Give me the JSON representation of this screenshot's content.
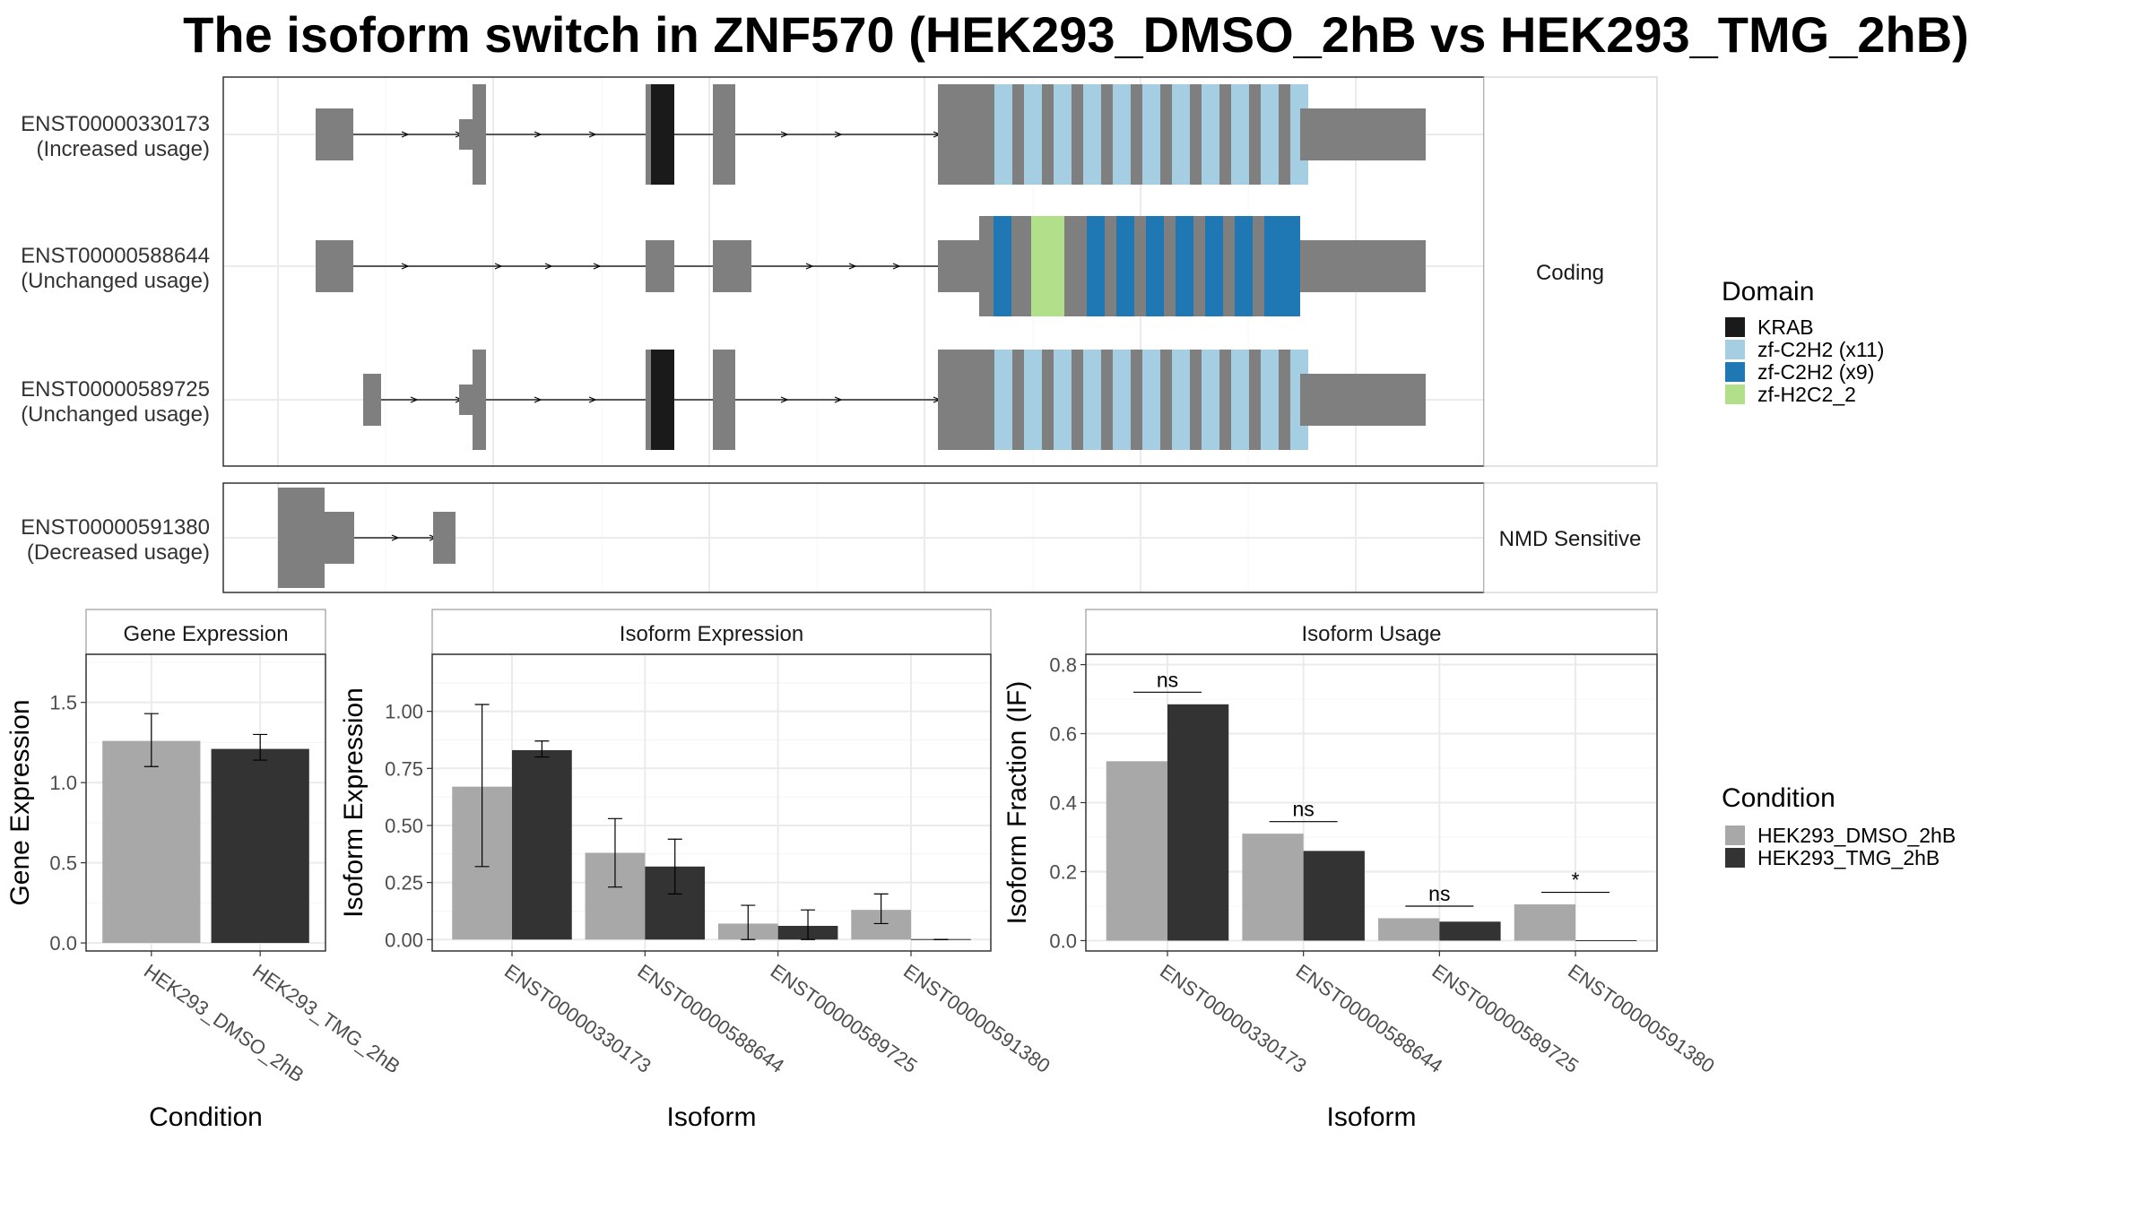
{
  "title": "The isoform switch in ZNF570 (HEK293_DMSO_2hB vs HEK293_TMG_2hB)",
  "colors": {
    "intron_box": "#7f7f7f",
    "dmso": "#a8a8a8",
    "tmg": "#333333",
    "KRAB": "#1a1a1a",
    "zf-C2H2 (x11)": "#a6cee3",
    "zf-C2H2 (x9)": "#1f78b4",
    "zf-H2C2_2": "#b2df8a"
  },
  "transcripts": [
    {
      "id": "ENST00000330173",
      "usage": "(Increased usage)",
      "group": "Coding"
    },
    {
      "id": "ENST00000588644",
      "usage": "(Unchanged usage)",
      "group": "Coding"
    },
    {
      "id": "ENST00000589725",
      "usage": "(Unchanged usage)",
      "group": "Coding"
    },
    {
      "id": "ENST00000591380",
      "usage": "(Decreased usage)",
      "group": "NMD Sensitive"
    }
  ],
  "structure_panels": [
    "Coding",
    "NMD Sensitive"
  ],
  "domain_legend": {
    "title": "Domain",
    "items": [
      {
        "label": "KRAB",
        "color": "#1a1a1a"
      },
      {
        "label": "zf-C2H2 (x11)",
        "color": "#a6cee3"
      },
      {
        "label": "zf-C2H2 (x9)",
        "color": "#1f78b4"
      },
      {
        "label": "zf-H2C2_2",
        "color": "#b2df8a"
      }
    ]
  },
  "condition_legend": {
    "title": "Condition",
    "items": [
      {
        "label": "HEK293_DMSO_2hB",
        "color": "#a8a8a8"
      },
      {
        "label": "HEK293_TMG_2hB",
        "color": "#333333"
      }
    ]
  },
  "chart_data": [
    {
      "type": "bar",
      "title": "Gene Expression",
      "xlabel": "Condition",
      "ylabel": "Gene Expression",
      "ylim": [
        -0.05,
        1.8
      ],
      "yticks": [
        0.0,
        0.5,
        1.0,
        1.5
      ],
      "ytick_labels": [
        "0.0",
        "0.5",
        "1.0",
        "1.5"
      ],
      "categories": [
        "HEK293_DMSO_2hB",
        "HEK293_TMG_2hB"
      ],
      "values": [
        1.26,
        1.21
      ],
      "err_low": [
        1.1,
        1.14
      ],
      "err_high": [
        1.43,
        1.3
      ],
      "colors": [
        "#a8a8a8",
        "#333333"
      ]
    },
    {
      "type": "bar",
      "title": "Isoform Expression",
      "xlabel": "Isoform",
      "ylabel": "Isoform Expression",
      "ylim": [
        -0.05,
        1.25
      ],
      "yticks": [
        0.0,
        0.25,
        0.5,
        0.75,
        1.0
      ],
      "ytick_labels": [
        "0.00",
        "0.25",
        "0.50",
        "0.75",
        "1.00"
      ],
      "categories": [
        "ENST00000330173",
        "ENST00000588644",
        "ENST00000589725",
        "ENST00000591380"
      ],
      "series": [
        {
          "name": "HEK293_DMSO_2hB",
          "values": [
            0.67,
            0.38,
            0.07,
            0.13
          ],
          "err_low": [
            0.32,
            0.23,
            0.0,
            0.07
          ],
          "err_high": [
            1.03,
            0.53,
            0.15,
            0.2
          ]
        },
        {
          "name": "HEK293_TMG_2hB",
          "values": [
            0.83,
            0.32,
            0.06,
            0.0
          ],
          "err_low": [
            0.8,
            0.2,
            0.0,
            0.0
          ],
          "err_high": [
            0.87,
            0.44,
            0.13,
            0.0
          ]
        }
      ]
    },
    {
      "type": "bar",
      "title": "Isoform Usage",
      "xlabel": "Isoform",
      "ylabel": "Isoform Fraction (IF)",
      "ylim": [
        -0.03,
        0.83
      ],
      "yticks": [
        0.0,
        0.2,
        0.4,
        0.6,
        0.8
      ],
      "ytick_labels": [
        "0.0",
        "0.2",
        "0.4",
        "0.6",
        "0.8"
      ],
      "categories": [
        "ENST00000330173",
        "ENST00000588644",
        "ENST00000589725",
        "ENST00000591380"
      ],
      "series": [
        {
          "name": "HEK293_DMSO_2hB",
          "values": [
            0.52,
            0.31,
            0.065,
            0.105
          ]
        },
        {
          "name": "HEK293_TMG_2hB",
          "values": [
            0.685,
            0.26,
            0.055,
            0.0
          ]
        }
      ],
      "significance": [
        "ns",
        "ns",
        "ns",
        "*"
      ]
    }
  ]
}
